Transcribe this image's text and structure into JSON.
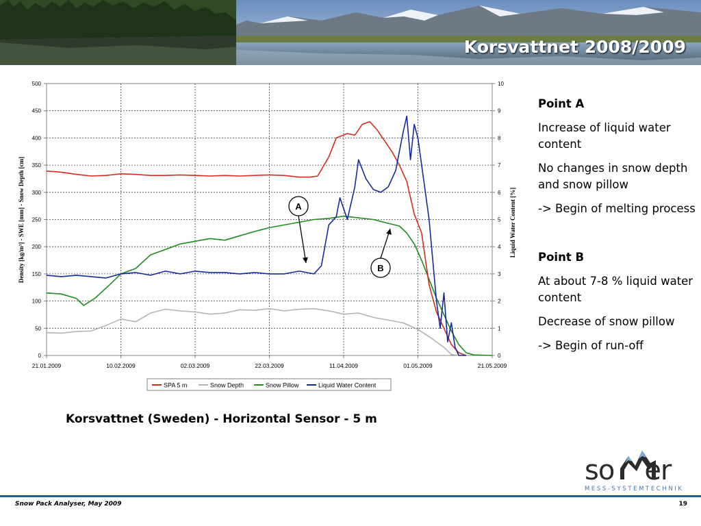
{
  "slide": {
    "title": "Korsvattnet 2008/2009",
    "caption": "Korsvattnet (Sweden) - Horizontal Sensor - 5 m",
    "footer_left": "Snow Pack Analyser, May 2009",
    "page_number": "19"
  },
  "logo": {
    "word_left": "so",
    "word_right": "er",
    "subtitle": "MESS-SYSTEMTECHNIK"
  },
  "notes": {
    "a_head": "Point A",
    "a_1": "Increase of liquid water content",
    "a_2": "No changes in snow depth and snow pillow",
    "a_3": "-> Begin of melting process",
    "b_head": "Point B",
    "b_1": "At about 7-8 % liquid water content",
    "b_2": "Decrease of snow pillow",
    "b_3": "-> Begin of run-off"
  },
  "colors": {
    "spa": "#d62a1e",
    "depth": "#b4b4b4",
    "pillow": "#1c8c1c",
    "lwc": "#1428a0",
    "footer": "#1f5fa8",
    "logo_blue": "#3c78b4"
  },
  "chart_data": {
    "type": "line",
    "title": "",
    "xlabel": "",
    "ylabel": "Density [kg/m³] - SWE [mm] - Snow Depth [cm]",
    "y2label": "Liquid Water Content [%]",
    "x_ticks": [
      "21.01.2009",
      "10.02.2009",
      "02.03.2009",
      "22.03.2009",
      "11.04.2009",
      "01.05.2009",
      "21.05.2009"
    ],
    "xlim": [
      "2009-01-21",
      "2009-05-21"
    ],
    "ylim": [
      0,
      500
    ],
    "y2lim": [
      0,
      10
    ],
    "y_ticks": [
      0,
      50,
      100,
      150,
      200,
      250,
      300,
      350,
      400,
      450,
      500
    ],
    "y2_ticks": [
      0,
      1,
      2,
      3,
      4,
      5,
      6,
      7,
      8,
      9,
      10
    ],
    "grid": true,
    "legend_position": "bottom",
    "series": [
      {
        "name": "SPA 5 m",
        "axis": "left",
        "points": [
          [
            "2009-01-21",
            339
          ],
          [
            "2009-01-25",
            337
          ],
          [
            "2009-01-29",
            333
          ],
          [
            "2009-02-02",
            330
          ],
          [
            "2009-02-06",
            331
          ],
          [
            "2009-02-10",
            334
          ],
          [
            "2009-02-14",
            333
          ],
          [
            "2009-02-18",
            331
          ],
          [
            "2009-02-22",
            331
          ],
          [
            "2009-02-26",
            332
          ],
          [
            "2009-03-02",
            331
          ],
          [
            "2009-03-06",
            330
          ],
          [
            "2009-03-10",
            331
          ],
          [
            "2009-03-14",
            330
          ],
          [
            "2009-03-18",
            331
          ],
          [
            "2009-03-22",
            332
          ],
          [
            "2009-03-26",
            331
          ],
          [
            "2009-03-30",
            328
          ],
          [
            "2009-04-02",
            328
          ],
          [
            "2009-04-04",
            330
          ],
          [
            "2009-04-07",
            365
          ],
          [
            "2009-04-09",
            400
          ],
          [
            "2009-04-12",
            408
          ],
          [
            "2009-04-14",
            405
          ],
          [
            "2009-04-16",
            425
          ],
          [
            "2009-04-18",
            430
          ],
          [
            "2009-04-20",
            415
          ],
          [
            "2009-04-22",
            395
          ],
          [
            "2009-04-24",
            375
          ],
          [
            "2009-04-26",
            350
          ],
          [
            "2009-04-28",
            320
          ],
          [
            "2009-04-30",
            260
          ],
          [
            "2009-05-02",
            225
          ],
          [
            "2009-05-04",
            130
          ],
          [
            "2009-05-06",
            80
          ],
          [
            "2009-05-08",
            50
          ],
          [
            "2009-05-10",
            20
          ],
          [
            "2009-05-12",
            5
          ],
          [
            "2009-05-14",
            0
          ]
        ]
      },
      {
        "name": "Snow Depth",
        "axis": "left",
        "points": [
          [
            "2009-01-21",
            42
          ],
          [
            "2009-01-25",
            41
          ],
          [
            "2009-01-29",
            44
          ],
          [
            "2009-02-02",
            45
          ],
          [
            "2009-02-06",
            55
          ],
          [
            "2009-02-10",
            67
          ],
          [
            "2009-02-14",
            62
          ],
          [
            "2009-02-18",
            78
          ],
          [
            "2009-02-22",
            85
          ],
          [
            "2009-02-26",
            82
          ],
          [
            "2009-03-02",
            80
          ],
          [
            "2009-03-06",
            76
          ],
          [
            "2009-03-10",
            78
          ],
          [
            "2009-03-14",
            84
          ],
          [
            "2009-03-18",
            83
          ],
          [
            "2009-03-22",
            86
          ],
          [
            "2009-03-26",
            82
          ],
          [
            "2009-03-30",
            85
          ],
          [
            "2009-04-03",
            86
          ],
          [
            "2009-04-07",
            82
          ],
          [
            "2009-04-11",
            76
          ],
          [
            "2009-04-15",
            78
          ],
          [
            "2009-04-19",
            70
          ],
          [
            "2009-04-23",
            65
          ],
          [
            "2009-04-27",
            60
          ],
          [
            "2009-05-01",
            48
          ],
          [
            "2009-05-05",
            30
          ],
          [
            "2009-05-08",
            15
          ],
          [
            "2009-05-10",
            2
          ],
          [
            "2009-05-12",
            0
          ]
        ]
      },
      {
        "name": "Snow Pillow",
        "axis": "left",
        "points": [
          [
            "2009-01-21",
            115
          ],
          [
            "2009-01-25",
            113
          ],
          [
            "2009-01-29",
            105
          ],
          [
            "2009-01-31",
            92
          ],
          [
            "2009-02-03",
            105
          ],
          [
            "2009-02-07",
            130
          ],
          [
            "2009-02-10",
            150
          ],
          [
            "2009-02-14",
            160
          ],
          [
            "2009-02-18",
            185
          ],
          [
            "2009-02-22",
            195
          ],
          [
            "2009-02-26",
            205
          ],
          [
            "2009-03-02",
            210
          ],
          [
            "2009-03-06",
            215
          ],
          [
            "2009-03-10",
            212
          ],
          [
            "2009-03-14",
            220
          ],
          [
            "2009-03-18",
            228
          ],
          [
            "2009-03-22",
            235
          ],
          [
            "2009-03-26",
            240
          ],
          [
            "2009-03-30",
            245
          ],
          [
            "2009-04-03",
            250
          ],
          [
            "2009-04-07",
            252
          ],
          [
            "2009-04-11",
            256
          ],
          [
            "2009-04-15",
            253
          ],
          [
            "2009-04-19",
            250
          ],
          [
            "2009-04-23",
            243
          ],
          [
            "2009-04-26",
            238
          ],
          [
            "2009-04-28",
            225
          ],
          [
            "2009-04-30",
            205
          ],
          [
            "2009-05-02",
            175
          ],
          [
            "2009-05-04",
            140
          ],
          [
            "2009-05-06",
            105
          ],
          [
            "2009-05-08",
            75
          ],
          [
            "2009-05-10",
            45
          ],
          [
            "2009-05-12",
            20
          ],
          [
            "2009-05-14",
            5
          ],
          [
            "2009-05-16",
            1
          ],
          [
            "2009-05-21",
            0
          ]
        ]
      },
      {
        "name": "Liquid Water Content",
        "axis": "right",
        "points": [
          [
            "2009-01-21",
            2.95
          ],
          [
            "2009-01-25",
            2.9
          ],
          [
            "2009-01-29",
            2.95
          ],
          [
            "2009-02-02",
            2.9
          ],
          [
            "2009-02-06",
            2.85
          ],
          [
            "2009-02-10",
            3.0
          ],
          [
            "2009-02-14",
            3.05
          ],
          [
            "2009-02-18",
            2.95
          ],
          [
            "2009-02-22",
            3.1
          ],
          [
            "2009-02-26",
            3.0
          ],
          [
            "2009-03-02",
            3.1
          ],
          [
            "2009-03-06",
            3.05
          ],
          [
            "2009-03-10",
            3.05
          ],
          [
            "2009-03-14",
            3.0
          ],
          [
            "2009-03-18",
            3.05
          ],
          [
            "2009-03-22",
            3.0
          ],
          [
            "2009-03-26",
            3.0
          ],
          [
            "2009-03-30",
            3.1
          ],
          [
            "2009-04-03",
            3.0
          ],
          [
            "2009-04-05",
            3.3
          ],
          [
            "2009-04-07",
            4.8
          ],
          [
            "2009-04-09",
            5.1
          ],
          [
            "2009-04-10",
            5.8
          ],
          [
            "2009-04-12",
            5.0
          ],
          [
            "2009-04-14",
            6.2
          ],
          [
            "2009-04-15",
            7.2
          ],
          [
            "2009-04-17",
            6.5
          ],
          [
            "2009-04-19",
            6.1
          ],
          [
            "2009-04-21",
            6.0
          ],
          [
            "2009-04-23",
            6.2
          ],
          [
            "2009-04-25",
            6.8
          ],
          [
            "2009-04-27",
            8.2
          ],
          [
            "2009-04-28",
            8.8
          ],
          [
            "2009-04-29",
            7.2
          ],
          [
            "2009-04-30",
            8.5
          ],
          [
            "2009-05-01",
            8.0
          ],
          [
            "2009-05-02",
            7.0
          ],
          [
            "2009-05-03",
            6.0
          ],
          [
            "2009-05-04",
            5.0
          ],
          [
            "2009-05-05",
            3.5
          ],
          [
            "2009-05-06",
            2.0
          ],
          [
            "2009-05-07",
            1.0
          ],
          [
            "2009-05-08",
            2.3
          ],
          [
            "2009-05-09",
            0.5
          ],
          [
            "2009-05-10",
            1.2
          ],
          [
            "2009-05-11",
            0.3
          ],
          [
            "2009-05-12",
            0.0
          ],
          [
            "2009-05-14",
            0.0
          ]
        ]
      }
    ],
    "annotations": [
      {
        "label": "A",
        "date": "2009-04-03",
        "value": 169
      },
      {
        "label": "B",
        "date": "2009-04-27",
        "value": 236
      }
    ]
  }
}
